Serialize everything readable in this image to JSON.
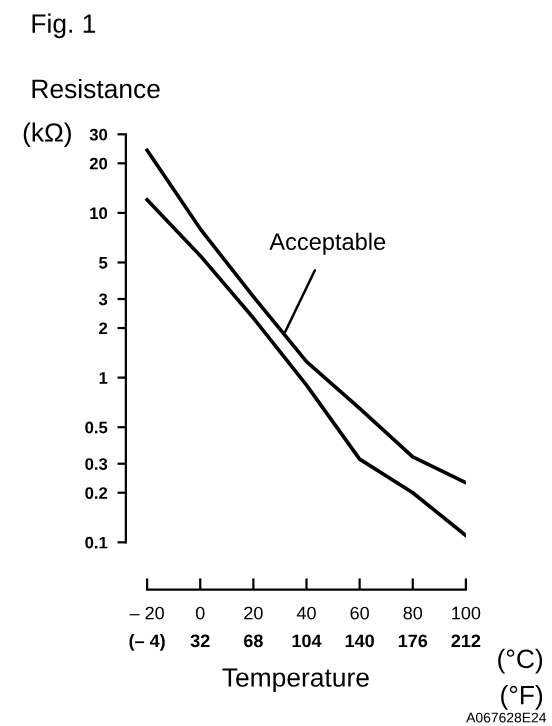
{
  "chart_data": {
    "type": "line",
    "title": "Fig. 1",
    "ylabel": "Resistance",
    "xlabel": "Temperature",
    "annotations": [
      "(kΩ)",
      "(°C)",
      "(°F)",
      "A067628E24",
      {
        "text": "Acceptable",
        "x": 32,
        "y": 1.9
      }
    ],
    "x": [
      -20,
      0,
      20,
      40,
      60,
      80,
      100
    ],
    "series": [
      {
        "color": "#000000",
        "values": [
          24,
          8,
          3.1,
          1.25,
          0.65,
          0.33,
          0.23
        ]
      },
      {
        "color": "#000000",
        "values": [
          12,
          5.5,
          2.3,
          0.9,
          0.32,
          0.2,
          0.11
        ]
      }
    ],
    "log": "y",
    "ylim": [
      0.1,
      30
    ],
    "yticks": [
      0.1,
      0.2,
      0.3,
      0.5,
      1,
      2,
      3,
      5,
      10,
      20,
      30
    ],
    "xlim": [
      -28,
      100
    ],
    "xticks": [
      {
        "value": -20,
        "label": "– 20"
      },
      0,
      20,
      40,
      60,
      80,
      100
    ],
    "x2lim": [
      -18.4,
      212
    ],
    "x2ticks": [
      {
        "value": -4,
        "label": "(– 4)"
      },
      32,
      68,
      104,
      140,
      176,
      212
    ],
    "grid": false,
    "legend": false,
    "marker": "none",
    "line_style": "solid"
  }
}
